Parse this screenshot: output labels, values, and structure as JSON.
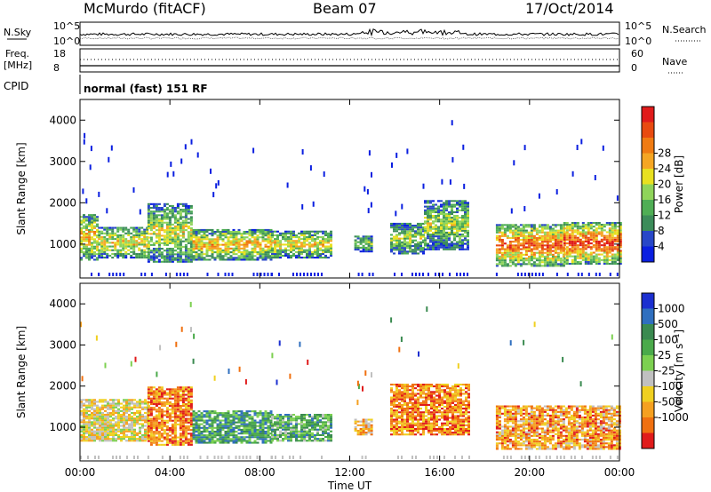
{
  "header": {
    "station": "McMurdo (fitACF)",
    "beam": "Beam 07",
    "date": "17/Oct/2014"
  },
  "top_panels": {
    "nsky_label": "N.Sky",
    "nsearch_label": "N.Search",
    "noise_ticks": [
      "10^5",
      "10^0"
    ],
    "freq_label_1": "Freq.",
    "freq_label_2": "[MHz]",
    "freq_ticks": [
      "18",
      "8"
    ],
    "nave_label": "Nave",
    "nave_ticks": [
      "60",
      "0"
    ],
    "cpid_label": "CPID",
    "mode_text": "normal (fast) 151 RF"
  },
  "chart_data": [
    {
      "type": "heatmap",
      "title": "",
      "xlabel": "Time UT",
      "ylabel": "Slant Range [km]",
      "x_ticks": [
        "00:00",
        "04:00",
        "08:00",
        "12:00",
        "16:00",
        "20:00",
        "00:00"
      ],
      "x_range_hours": [
        0,
        24
      ],
      "y_ticks": [
        1000,
        2000,
        3000,
        4000
      ],
      "y_range_km": [
        180,
        4500
      ],
      "colorbar": {
        "label": "Power [dB]",
        "ticks": [
          "4",
          "8",
          "12",
          "16",
          "20",
          "24",
          "28"
        ],
        "colors": [
          "#0a1fe0",
          "#2847c8",
          "#3c8c5a",
          "#4fae55",
          "#8fd45a",
          "#e8e020",
          "#f5a623",
          "#f07b12",
          "#e84a10",
          "#e01b1b"
        ]
      },
      "scatter_bands": [
        {
          "t_start": 0.0,
          "t_end": 0.8,
          "r_low": 600,
          "r_high": 1700,
          "level": 0.55
        },
        {
          "t_start": 0.8,
          "t_end": 3.0,
          "r_low": 650,
          "r_high": 1400,
          "level": 0.5
        },
        {
          "t_start": 3.0,
          "t_end": 5.0,
          "r_low": 550,
          "r_high": 1950,
          "level": 0.45
        },
        {
          "t_start": 5.0,
          "t_end": 8.5,
          "r_low": 600,
          "r_high": 1350,
          "level": 0.55
        },
        {
          "t_start": 8.5,
          "t_end": 11.2,
          "r_low": 650,
          "r_high": 1300,
          "level": 0.5
        },
        {
          "t_start": 12.2,
          "t_end": 13.0,
          "r_low": 800,
          "r_high": 1200,
          "level": 0.35
        },
        {
          "t_start": 13.8,
          "t_end": 15.3,
          "r_low": 750,
          "r_high": 1500,
          "level": 0.4
        },
        {
          "t_start": 15.3,
          "t_end": 17.3,
          "r_low": 850,
          "r_high": 2050,
          "level": 0.4
        },
        {
          "t_start": 18.5,
          "t_end": 21.5,
          "r_low": 450,
          "r_high": 1450,
          "level": 0.7
        },
        {
          "t_start": 21.5,
          "t_end": 24.0,
          "r_low": 500,
          "r_high": 1500,
          "level": 0.75
        }
      ]
    },
    {
      "type": "heatmap",
      "title": "",
      "xlabel": "Time UT",
      "ylabel": "Slant Range [km]",
      "x_ticks": [
        "00:00",
        "04:00",
        "08:00",
        "12:00",
        "16:00",
        "20:00",
        "00:00"
      ],
      "x_range_hours": [
        0,
        24
      ],
      "y_ticks": [
        1000,
        2000,
        3000,
        4000
      ],
      "y_range_km": [
        180,
        4500
      ],
      "colorbar": {
        "label": "Velocity [m s⁻¹]",
        "ticks": [
          "1000",
          "500",
          "100",
          "25",
          "-25",
          "-100",
          "-500",
          "-1000"
        ],
        "colors": [
          "#1b2fd0",
          "#2f6fbf",
          "#3a8a50",
          "#4aaa4a",
          "#7cd050",
          "#c0c0c0",
          "#f0d020",
          "#f5a020",
          "#f07010",
          "#e01b1b"
        ]
      },
      "scatter_bands": [
        {
          "t_start": 0.0,
          "t_end": 3.0,
          "r_low": 650,
          "r_high": 1650,
          "level": -0.2
        },
        {
          "t_start": 3.0,
          "t_end": 5.0,
          "r_low": 550,
          "r_high": 1950,
          "level": -0.6
        },
        {
          "t_start": 5.0,
          "t_end": 8.5,
          "r_low": 600,
          "r_high": 1400,
          "level": 0.4
        },
        {
          "t_start": 8.5,
          "t_end": 11.2,
          "r_low": 650,
          "r_high": 1300,
          "level": 0.3
        },
        {
          "t_start": 12.2,
          "t_end": 13.0,
          "r_low": 800,
          "r_high": 1200,
          "level": -0.4
        },
        {
          "t_start": 13.8,
          "t_end": 17.3,
          "r_low": 800,
          "r_high": 2050,
          "level": -0.6
        },
        {
          "t_start": 18.5,
          "t_end": 24.0,
          "r_low": 450,
          "r_high": 1500,
          "level": -0.5
        }
      ]
    }
  ]
}
